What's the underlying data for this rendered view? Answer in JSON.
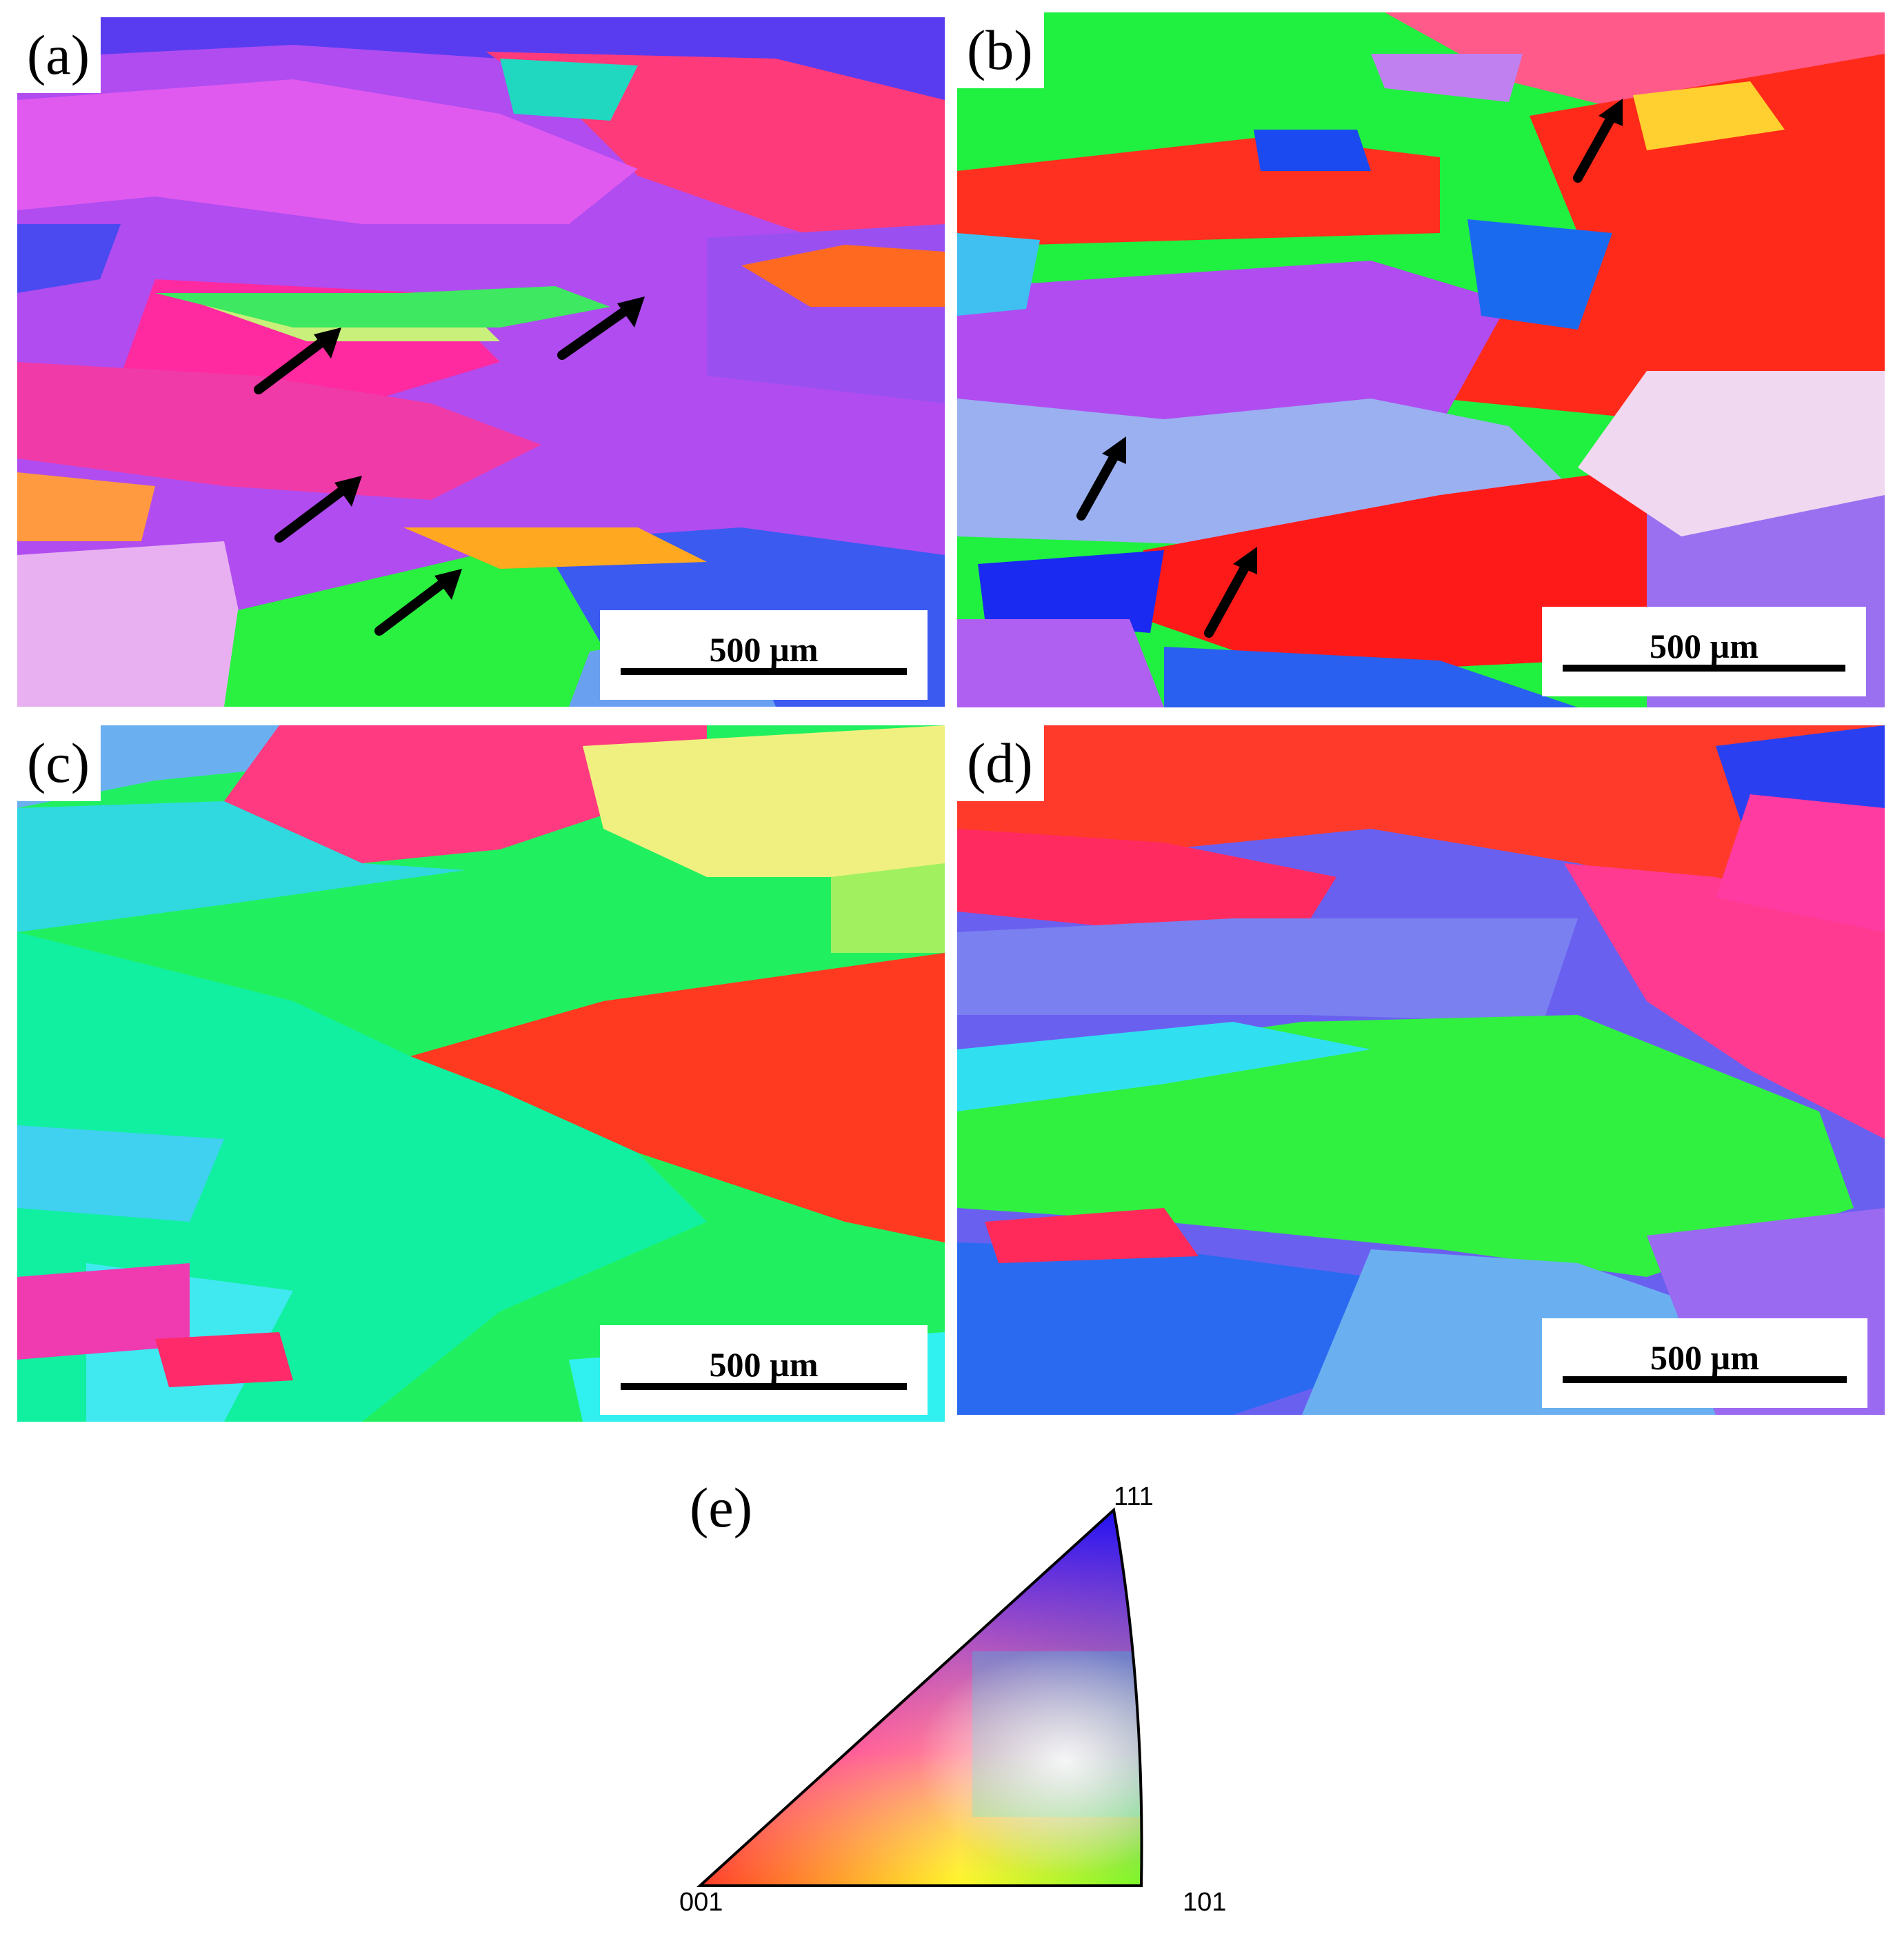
{
  "panels": [
    {
      "id": "a",
      "label": "(a)",
      "scale_bar": "500 µm"
    },
    {
      "id": "b",
      "label": "(b)",
      "scale_bar": "500 µm"
    },
    {
      "id": "c",
      "label": "(c)",
      "scale_bar": "500 µm"
    },
    {
      "id": "d",
      "label": "(d)",
      "scale_bar": "500 µm"
    }
  ],
  "legend": {
    "label": "(e)",
    "corner_001": "001",
    "corner_101": "101",
    "corner_111": "111",
    "colors": {
      "001": "#ff0000",
      "101": "#00ff00",
      "111": "#0000ff"
    }
  }
}
